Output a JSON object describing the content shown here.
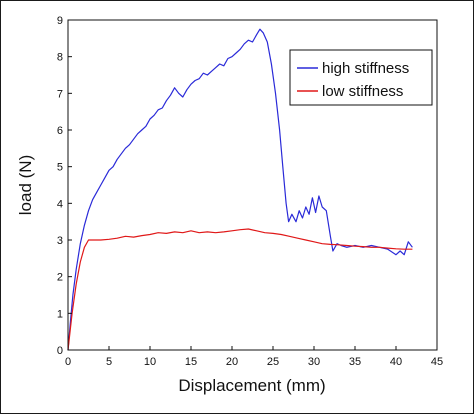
{
  "chart_data": {
    "type": "line",
    "title": "",
    "xlabel": "Displacement (mm)",
    "ylabel": "load (N)",
    "xlim": [
      0,
      45
    ],
    "ylim": [
      0,
      9
    ],
    "xticks": [
      0,
      5,
      10,
      15,
      20,
      25,
      30,
      35,
      40,
      45
    ],
    "yticks": [
      0,
      1,
      2,
      3,
      4,
      5,
      6,
      7,
      8,
      9
    ],
    "grid": false,
    "legend_position": "top-right",
    "series": [
      {
        "name": "high stiffness",
        "color": "#2a2ad8",
        "points": [
          [
            0,
            0
          ],
          [
            0.3,
            0.8
          ],
          [
            0.6,
            1.5
          ],
          [
            1,
            2.2
          ],
          [
            1.5,
            2.9
          ],
          [
            2,
            3.4
          ],
          [
            2.5,
            3.8
          ],
          [
            3,
            4.1
          ],
          [
            3.5,
            4.3
          ],
          [
            4,
            4.5
          ],
          [
            4.5,
            4.7
          ],
          [
            5,
            4.9
          ],
          [
            5.5,
            5.0
          ],
          [
            6,
            5.2
          ],
          [
            6.5,
            5.35
          ],
          [
            7,
            5.5
          ],
          [
            7.5,
            5.6
          ],
          [
            8,
            5.75
          ],
          [
            8.5,
            5.9
          ],
          [
            9,
            6.0
          ],
          [
            9.5,
            6.1
          ],
          [
            10,
            6.3
          ],
          [
            10.5,
            6.4
          ],
          [
            11,
            6.55
          ],
          [
            11.5,
            6.6
          ],
          [
            12,
            6.8
          ],
          [
            12.5,
            6.95
          ],
          [
            13,
            7.15
          ],
          [
            13.5,
            7.0
          ],
          [
            14,
            6.9
          ],
          [
            14.5,
            7.1
          ],
          [
            15,
            7.25
          ],
          [
            15.5,
            7.35
          ],
          [
            16,
            7.4
          ],
          [
            16.5,
            7.55
          ],
          [
            17,
            7.5
          ],
          [
            17.5,
            7.6
          ],
          [
            18,
            7.7
          ],
          [
            18.5,
            7.8
          ],
          [
            19,
            7.75
          ],
          [
            19.5,
            7.95
          ],
          [
            20,
            8.0
          ],
          [
            20.5,
            8.1
          ],
          [
            21,
            8.2
          ],
          [
            21.5,
            8.35
          ],
          [
            22,
            8.45
          ],
          [
            22.5,
            8.4
          ],
          [
            23,
            8.6
          ],
          [
            23.4,
            8.75
          ],
          [
            23.8,
            8.65
          ],
          [
            24.3,
            8.4
          ],
          [
            24.8,
            7.8
          ],
          [
            25.3,
            7.0
          ],
          [
            25.8,
            6.0
          ],
          [
            26.2,
            5.0
          ],
          [
            26.6,
            4.0
          ],
          [
            26.9,
            3.5
          ],
          [
            27.3,
            3.7
          ],
          [
            27.8,
            3.5
          ],
          [
            28.2,
            3.8
          ],
          [
            28.6,
            3.6
          ],
          [
            29,
            3.9
          ],
          [
            29.4,
            3.7
          ],
          [
            29.8,
            4.15
          ],
          [
            30.2,
            3.75
          ],
          [
            30.6,
            4.2
          ],
          [
            31,
            3.9
          ],
          [
            31.5,
            3.8
          ],
          [
            32,
            3.1
          ],
          [
            32.3,
            2.7
          ],
          [
            32.8,
            2.9
          ],
          [
            33.3,
            2.85
          ],
          [
            34,
            2.8
          ],
          [
            35,
            2.85
          ],
          [
            36,
            2.8
          ],
          [
            37,
            2.85
          ],
          [
            38,
            2.8
          ],
          [
            39,
            2.75
          ],
          [
            40,
            2.6
          ],
          [
            40.5,
            2.7
          ],
          [
            41,
            2.6
          ],
          [
            41.5,
            2.95
          ],
          [
            42,
            2.8
          ]
        ]
      },
      {
        "name": "low stiffness",
        "color": "#e01818",
        "points": [
          [
            0,
            0
          ],
          [
            0.5,
            1.0
          ],
          [
            1,
            1.8
          ],
          [
            1.5,
            2.4
          ],
          [
            2,
            2.8
          ],
          [
            2.5,
            3.0
          ],
          [
            3,
            3.0
          ],
          [
            4,
            3.0
          ],
          [
            5,
            3.02
          ],
          [
            6,
            3.05
          ],
          [
            7,
            3.1
          ],
          [
            8,
            3.08
          ],
          [
            9,
            3.12
          ],
          [
            10,
            3.15
          ],
          [
            11,
            3.2
          ],
          [
            12,
            3.18
          ],
          [
            13,
            3.22
          ],
          [
            14,
            3.2
          ],
          [
            15,
            3.25
          ],
          [
            16,
            3.2
          ],
          [
            17,
            3.22
          ],
          [
            18,
            3.2
          ],
          [
            19,
            3.22
          ],
          [
            20,
            3.25
          ],
          [
            21,
            3.28
          ],
          [
            22,
            3.3
          ],
          [
            23,
            3.25
          ],
          [
            24,
            3.2
          ],
          [
            25,
            3.18
          ],
          [
            26,
            3.15
          ],
          [
            27,
            3.1
          ],
          [
            28,
            3.05
          ],
          [
            29,
            3.0
          ],
          [
            30,
            2.95
          ],
          [
            31,
            2.9
          ],
          [
            32,
            2.88
          ],
          [
            33,
            2.87
          ],
          [
            34,
            2.85
          ],
          [
            35,
            2.83
          ],
          [
            36,
            2.82
          ],
          [
            37,
            2.8
          ],
          [
            38,
            2.8
          ],
          [
            39,
            2.78
          ],
          [
            40,
            2.76
          ],
          [
            41,
            2.75
          ],
          [
            42,
            2.75
          ]
        ]
      }
    ]
  }
}
